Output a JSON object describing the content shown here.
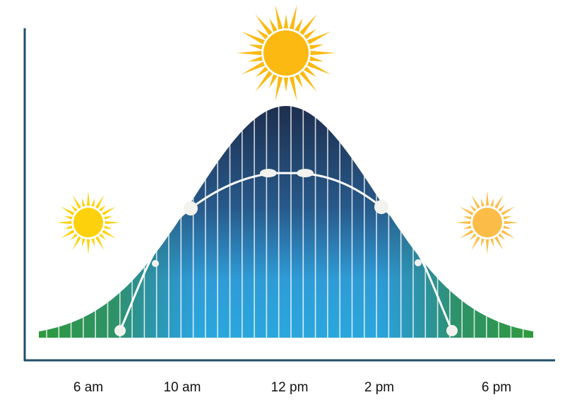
{
  "axis_labels": [
    "6 am",
    "10 am",
    "12 pm",
    "2 pm",
    "6 pm"
  ]
}
